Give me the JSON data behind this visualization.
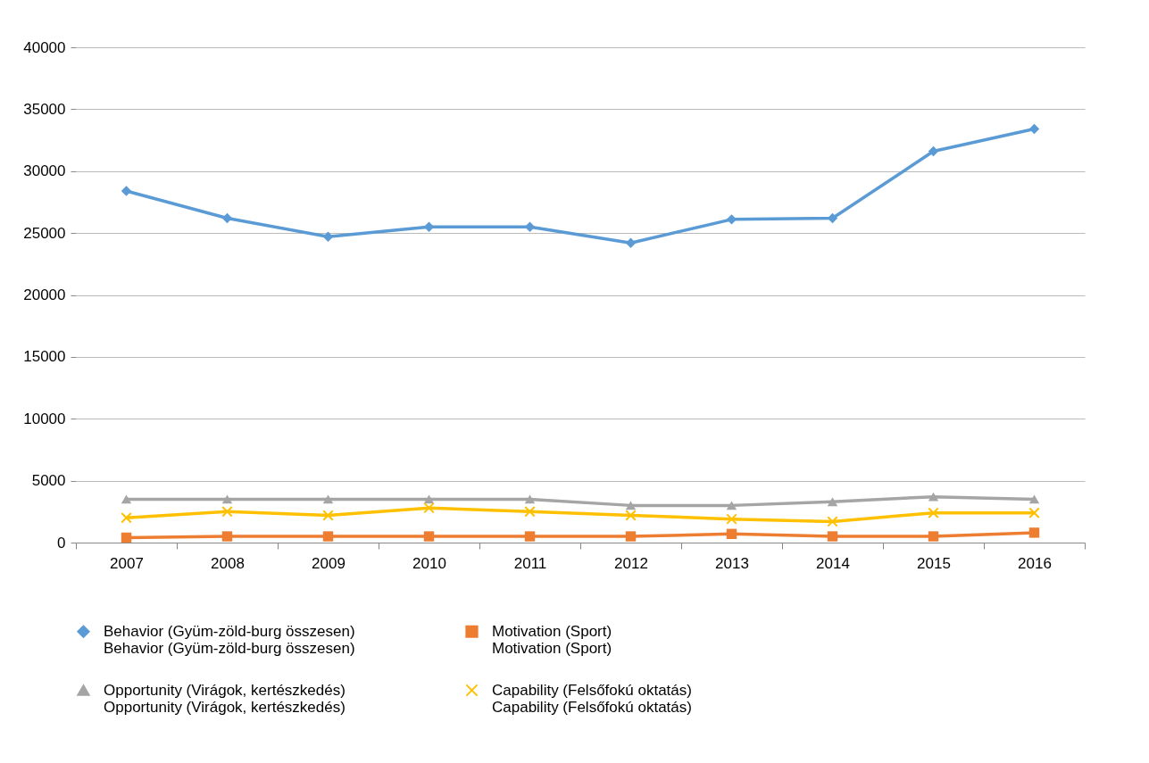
{
  "chart_data": {
    "type": "line",
    "categories": [
      "2007",
      "2008",
      "2009",
      "2010",
      "2011",
      "2012",
      "2013",
      "2014",
      "2015",
      "2016"
    ],
    "series": [
      {
        "name": "Behavior (Gyüm-zöld-burg összesen)\nBehavior (Gyüm-zöld-burg összesen)",
        "color": "#5b9bd5",
        "marker": "diamond",
        "values": [
          28400,
          26200,
          24700,
          25500,
          25500,
          24200,
          26100,
          26200,
          31600,
          33400
        ]
      },
      {
        "name": "Motivation (Sport)\nMotivation (Sport)",
        "color": "#ed7d31",
        "marker": "square",
        "values": [
          400,
          500,
          500,
          500,
          500,
          500,
          700,
          500,
          500,
          800
        ]
      },
      {
        "name": "Opportunity (Virágok, kertészkedés)\nOpportunity (Virágok, kertészkedés)",
        "color": "#a5a5a5",
        "marker": "triangle",
        "values": [
          3500,
          3500,
          3500,
          3500,
          3500,
          3000,
          3000,
          3300,
          3700,
          3500
        ]
      },
      {
        "name": "Capability (Felsőfokú oktatás)\nCapability (Felsőfokú oktatás)",
        "color": "#ffc000",
        "marker": "cross",
        "values": [
          2000,
          2500,
          2200,
          2800,
          2500,
          2200,
          1900,
          1700,
          2400,
          2400
        ]
      }
    ],
    "ylim": [
      0,
      40000
    ],
    "yticks": [
      0,
      5000,
      10000,
      15000,
      20000,
      25000,
      30000,
      35000,
      40000
    ],
    "grid": "y",
    "legend": "bottom",
    "line_style": "solid"
  }
}
